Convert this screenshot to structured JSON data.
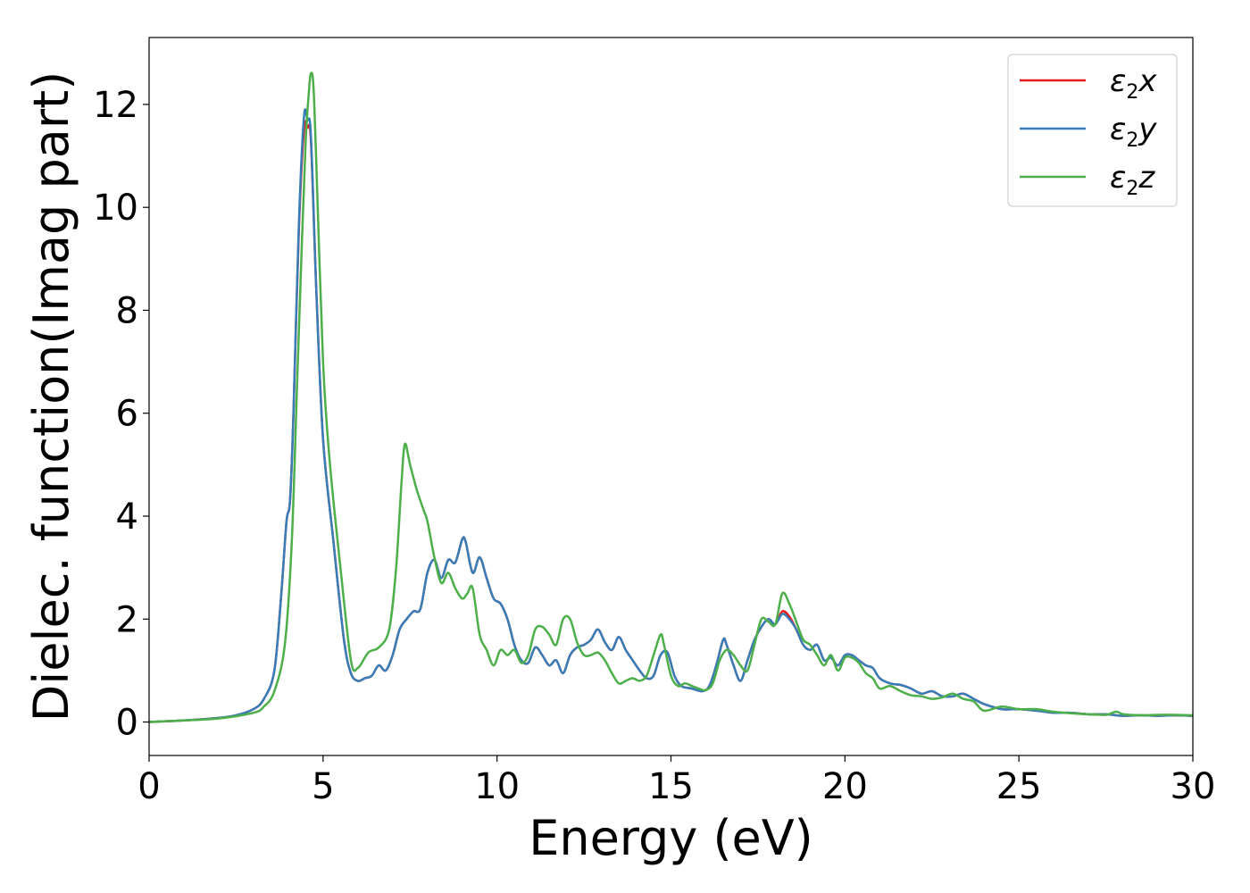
{
  "chart_data": {
    "type": "line",
    "title": "",
    "xlabel": "Energy (eV)",
    "ylabel": "Dielec. function(Imag part)",
    "xlim": [
      0,
      30
    ],
    "ylim": [
      -0.65,
      13.3
    ],
    "xticks": [
      0,
      5,
      10,
      15,
      20,
      25,
      30
    ],
    "yticks": [
      0,
      2,
      4,
      6,
      8,
      10,
      12
    ],
    "grid": false,
    "legend_position": "top-right",
    "series": [
      {
        "name_base": "ε",
        "name_sub": "2",
        "name_axis": "x",
        "color": "#e41a1c",
        "x": [
          0,
          1,
          2,
          2.5,
          3,
          3.3,
          3.6,
          3.8,
          3.95,
          4.05,
          4.15,
          4.3,
          4.45,
          4.55,
          4.65,
          4.8,
          5.0,
          5.3,
          5.6,
          5.8,
          6.0,
          6.2,
          6.4,
          6.6,
          6.8,
          7.0,
          7.2,
          7.4,
          7.6,
          7.8,
          8.0,
          8.2,
          8.4,
          8.6,
          8.8,
          9.0,
          9.1,
          9.3,
          9.5,
          9.7,
          9.9,
          10.1,
          10.3,
          10.5,
          10.7,
          10.9,
          11.1,
          11.3,
          11.5,
          11.7,
          11.9,
          12.1,
          12.3,
          12.5,
          12.7,
          12.9,
          13.1,
          13.3,
          13.5,
          13.7,
          13.9,
          14.1,
          14.3,
          14.5,
          14.7,
          14.9,
          15.1,
          15.3,
          15.6,
          15.9,
          16.1,
          16.3,
          16.5,
          16.6,
          16.8,
          17.0,
          17.2,
          17.4,
          17.6,
          17.8,
          18.0,
          18.2,
          18.4,
          18.6,
          18.8,
          19.0,
          19.2,
          19.4,
          19.6,
          19.8,
          20.0,
          20.2,
          20.4,
          20.6,
          20.8,
          21.0,
          21.3,
          21.6,
          21.9,
          22.2,
          22.5,
          22.8,
          23.1,
          23.4,
          23.7,
          24.0,
          24.5,
          25.0,
          25.5,
          26.0,
          26.5,
          27.0,
          27.5,
          28.0,
          28.5,
          29.0,
          29.5,
          30.0
        ],
        "values": [
          0.0,
          0.03,
          0.08,
          0.13,
          0.25,
          0.45,
          1.0,
          2.5,
          3.9,
          4.3,
          6.0,
          9.5,
          11.5,
          11.55,
          11.3,
          8.5,
          5.5,
          3.5,
          1.6,
          0.95,
          0.8,
          0.85,
          0.9,
          1.1,
          1.0,
          1.3,
          1.8,
          2.0,
          2.15,
          2.2,
          2.9,
          3.15,
          2.8,
          3.15,
          3.1,
          3.55,
          3.5,
          2.9,
          3.2,
          2.8,
          2.4,
          2.3,
          2.0,
          1.5,
          1.2,
          1.15,
          1.45,
          1.3,
          1.1,
          1.2,
          0.95,
          1.3,
          1.45,
          1.5,
          1.6,
          1.8,
          1.55,
          1.4,
          1.65,
          1.4,
          1.2,
          1.0,
          0.85,
          0.9,
          1.3,
          1.35,
          0.9,
          0.7,
          0.65,
          0.6,
          0.7,
          1.1,
          1.6,
          1.5,
          1.1,
          0.8,
          1.2,
          1.6,
          1.85,
          2.0,
          1.9,
          2.15,
          2.05,
          1.8,
          1.5,
          1.4,
          1.5,
          1.2,
          1.25,
          1.1,
          1.3,
          1.3,
          1.2,
          1.1,
          1.05,
          0.85,
          0.75,
          0.72,
          0.65,
          0.55,
          0.6,
          0.5,
          0.5,
          0.55,
          0.45,
          0.35,
          0.25,
          0.25,
          0.22,
          0.18,
          0.18,
          0.15,
          0.15,
          0.12,
          0.13,
          0.12,
          0.13,
          0.12
        ]
      },
      {
        "name_base": "ε",
        "name_sub": "2",
        "name_axis": "y",
        "color": "#377eb8",
        "x": [
          0,
          1,
          2,
          2.5,
          3,
          3.3,
          3.6,
          3.8,
          3.95,
          4.05,
          4.15,
          4.3,
          4.45,
          4.55,
          4.65,
          4.8,
          5.0,
          5.3,
          5.6,
          5.8,
          6.0,
          6.2,
          6.4,
          6.6,
          6.8,
          7.0,
          7.2,
          7.4,
          7.6,
          7.8,
          8.0,
          8.2,
          8.4,
          8.6,
          8.8,
          9.0,
          9.1,
          9.3,
          9.5,
          9.7,
          9.9,
          10.1,
          10.3,
          10.5,
          10.7,
          10.9,
          11.1,
          11.3,
          11.5,
          11.7,
          11.9,
          12.1,
          12.3,
          12.5,
          12.7,
          12.9,
          13.1,
          13.3,
          13.5,
          13.7,
          13.9,
          14.1,
          14.3,
          14.5,
          14.7,
          14.9,
          15.1,
          15.3,
          15.6,
          15.9,
          16.1,
          16.3,
          16.5,
          16.6,
          16.8,
          17.0,
          17.2,
          17.4,
          17.6,
          17.8,
          18.0,
          18.2,
          18.4,
          18.6,
          18.8,
          19.0,
          19.2,
          19.4,
          19.6,
          19.8,
          20.0,
          20.2,
          20.4,
          20.6,
          20.8,
          21.0,
          21.3,
          21.6,
          21.9,
          22.2,
          22.5,
          22.8,
          23.1,
          23.4,
          23.7,
          24.0,
          24.5,
          25.0,
          25.5,
          26.0,
          26.5,
          27.0,
          27.5,
          28.0,
          28.5,
          29.0,
          29.5,
          30.0
        ],
        "values": [
          0.0,
          0.03,
          0.08,
          0.13,
          0.25,
          0.45,
          1.0,
          2.5,
          3.9,
          4.3,
          6.0,
          9.6,
          11.75,
          11.7,
          11.4,
          8.5,
          5.5,
          3.5,
          1.6,
          0.95,
          0.8,
          0.85,
          0.9,
          1.1,
          1.0,
          1.3,
          1.8,
          2.0,
          2.15,
          2.2,
          2.9,
          3.15,
          2.8,
          3.15,
          3.1,
          3.55,
          3.5,
          2.9,
          3.2,
          2.8,
          2.4,
          2.3,
          2.0,
          1.5,
          1.2,
          1.15,
          1.45,
          1.3,
          1.1,
          1.2,
          0.95,
          1.3,
          1.45,
          1.5,
          1.6,
          1.8,
          1.55,
          1.4,
          1.65,
          1.4,
          1.2,
          1.0,
          0.85,
          0.9,
          1.3,
          1.35,
          0.9,
          0.7,
          0.65,
          0.6,
          0.7,
          1.1,
          1.6,
          1.5,
          1.1,
          0.8,
          1.2,
          1.6,
          1.85,
          2.0,
          1.9,
          2.1,
          2.0,
          1.8,
          1.5,
          1.4,
          1.5,
          1.2,
          1.25,
          1.1,
          1.3,
          1.3,
          1.2,
          1.1,
          1.05,
          0.85,
          0.75,
          0.72,
          0.65,
          0.55,
          0.6,
          0.5,
          0.5,
          0.55,
          0.45,
          0.35,
          0.25,
          0.25,
          0.22,
          0.18,
          0.18,
          0.15,
          0.15,
          0.12,
          0.13,
          0.12,
          0.13,
          0.12
        ]
      },
      {
        "name_base": "ε",
        "name_sub": "2",
        "name_axis": "z",
        "color": "#4daf4a",
        "x": [
          0,
          1,
          2,
          3,
          3.3,
          3.6,
          3.9,
          4.1,
          4.25,
          4.4,
          4.5,
          4.6,
          4.65,
          4.72,
          4.8,
          5.0,
          5.2,
          5.5,
          5.8,
          6.0,
          6.3,
          6.6,
          6.9,
          7.1,
          7.25,
          7.35,
          7.5,
          7.7,
          7.9,
          8.0,
          8.2,
          8.4,
          8.6,
          8.8,
          9.0,
          9.15,
          9.3,
          9.5,
          9.7,
          9.9,
          10.1,
          10.3,
          10.5,
          10.7,
          10.9,
          11.1,
          11.3,
          11.5,
          11.7,
          11.9,
          12.1,
          12.3,
          12.5,
          12.7,
          12.9,
          13.1,
          13.3,
          13.5,
          13.7,
          13.9,
          14.1,
          14.3,
          14.5,
          14.7,
          14.8,
          15.0,
          15.2,
          15.4,
          15.6,
          15.8,
          16.0,
          16.2,
          16.4,
          16.6,
          16.8,
          17.0,
          17.2,
          17.4,
          17.6,
          17.8,
          18.0,
          18.2,
          18.4,
          18.6,
          18.8,
          19.0,
          19.2,
          19.4,
          19.6,
          19.8,
          20.0,
          20.2,
          20.4,
          20.6,
          20.8,
          21.0,
          21.3,
          21.6,
          21.9,
          22.2,
          22.5,
          22.8,
          23.1,
          23.4,
          23.7,
          24.0,
          24.5,
          25.0,
          25.5,
          26.0,
          26.5,
          27.0,
          27.5,
          27.8,
          28.0,
          28.5,
          29.0,
          29.5,
          30.0
        ],
        "values": [
          0.0,
          0.03,
          0.07,
          0.18,
          0.3,
          0.6,
          1.5,
          3.5,
          6.5,
          9.5,
          11.3,
          12.3,
          12.6,
          12.4,
          11.0,
          7.0,
          5.0,
          3.0,
          1.2,
          1.05,
          1.35,
          1.45,
          1.8,
          3.0,
          4.6,
          5.4,
          5.0,
          4.5,
          4.1,
          3.9,
          3.2,
          2.7,
          2.9,
          2.6,
          2.4,
          2.5,
          2.6,
          1.7,
          1.4,
          1.1,
          1.4,
          1.3,
          1.4,
          1.15,
          1.3,
          1.8,
          1.85,
          1.7,
          1.5,
          2.0,
          2.0,
          1.55,
          1.3,
          1.3,
          1.35,
          1.2,
          0.95,
          0.75,
          0.8,
          0.85,
          0.8,
          0.9,
          1.3,
          1.7,
          1.5,
          0.9,
          0.7,
          0.75,
          0.7,
          0.65,
          0.62,
          0.75,
          1.2,
          1.4,
          1.3,
          1.1,
          1.0,
          1.5,
          2.0,
          1.95,
          1.9,
          2.5,
          2.3,
          1.95,
          1.6,
          1.5,
          1.3,
          1.1,
          1.3,
          1.0,
          1.25,
          1.25,
          1.15,
          0.95,
          0.85,
          0.65,
          0.7,
          0.6,
          0.52,
          0.5,
          0.45,
          0.48,
          0.55,
          0.45,
          0.4,
          0.22,
          0.3,
          0.25,
          0.25,
          0.2,
          0.17,
          0.15,
          0.14,
          0.2,
          0.15,
          0.13,
          0.14,
          0.14,
          0.13
        ]
      }
    ]
  }
}
